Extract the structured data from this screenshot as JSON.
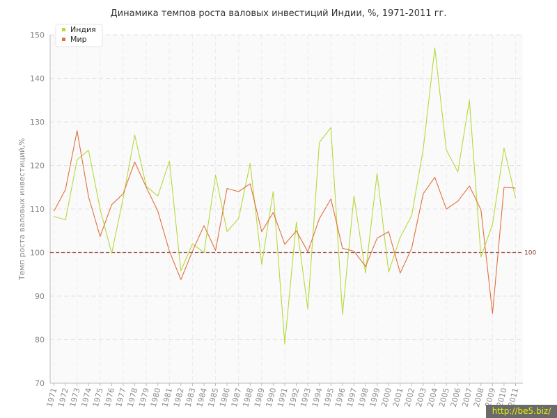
{
  "chart_data": {
    "type": "line",
    "title": "Динамика темпов роста валовых инвестиций Индии, %, 1971-2011 гг.",
    "ylabel": "Темп роста валовых инвестиций,%",
    "xlabel": "",
    "ylim": [
      70,
      150
    ],
    "yticks": [
      70,
      80,
      90,
      100,
      110,
      120,
      130,
      140,
      150
    ],
    "grid": true,
    "legend_position": "top-left",
    "x": [
      "1971",
      "1972",
      "1973",
      "1974",
      "1975",
      "1976",
      "1977",
      "1978",
      "1979",
      "1980",
      "1981",
      "1982",
      "1983",
      "1984",
      "1985",
      "1986",
      "1987",
      "1988",
      "1989",
      "1990",
      "1991",
      "1992",
      "1993",
      "1994",
      "1995",
      "1996",
      "1997",
      "1998",
      "1999",
      "2000",
      "2001",
      "2002",
      "2003",
      "2004",
      "2005",
      "2006",
      "2007",
      "2008",
      "2009",
      "2010",
      "2011"
    ],
    "series": [
      {
        "name": "Индия",
        "color": "#b5d93c",
        "values": [
          108.3,
          107.5,
          121.3,
          123.5,
          110.0,
          99.8,
          112.5,
          127.0,
          115.2,
          113.0,
          121.0,
          95.8,
          102.0,
          100.0,
          117.8,
          104.8,
          107.8,
          120.5,
          97.3,
          114.0,
          79.0,
          107.0,
          87.0,
          125.3,
          128.7,
          85.8,
          113.0,
          95.3,
          118.2,
          95.5,
          103.5,
          108.5,
          123.8,
          147.0,
          123.6,
          118.5,
          135.0,
          99.0,
          106.5,
          124.0,
          112.5
        ]
      },
      {
        "name": "Мир",
        "color": "#e0703c",
        "values": [
          109.5,
          114.5,
          128.0,
          112.8,
          103.7,
          111.0,
          113.5,
          120.8,
          115.0,
          109.5,
          100.3,
          93.8,
          100.3,
          106.2,
          100.5,
          114.7,
          114.0,
          115.8,
          104.8,
          109.2,
          101.9,
          105.0,
          100.2,
          107.8,
          112.3,
          101.0,
          100.3,
          96.8,
          103.3,
          104.8,
          95.3,
          101.0,
          113.5,
          117.3,
          110.0,
          111.8,
          115.3,
          109.8,
          86.0,
          115.0,
          114.8
        ]
      }
    ],
    "reference_line": {
      "value": 100,
      "label": "100",
      "color": "#a05050"
    }
  },
  "watermark": "http://be5.biz/"
}
